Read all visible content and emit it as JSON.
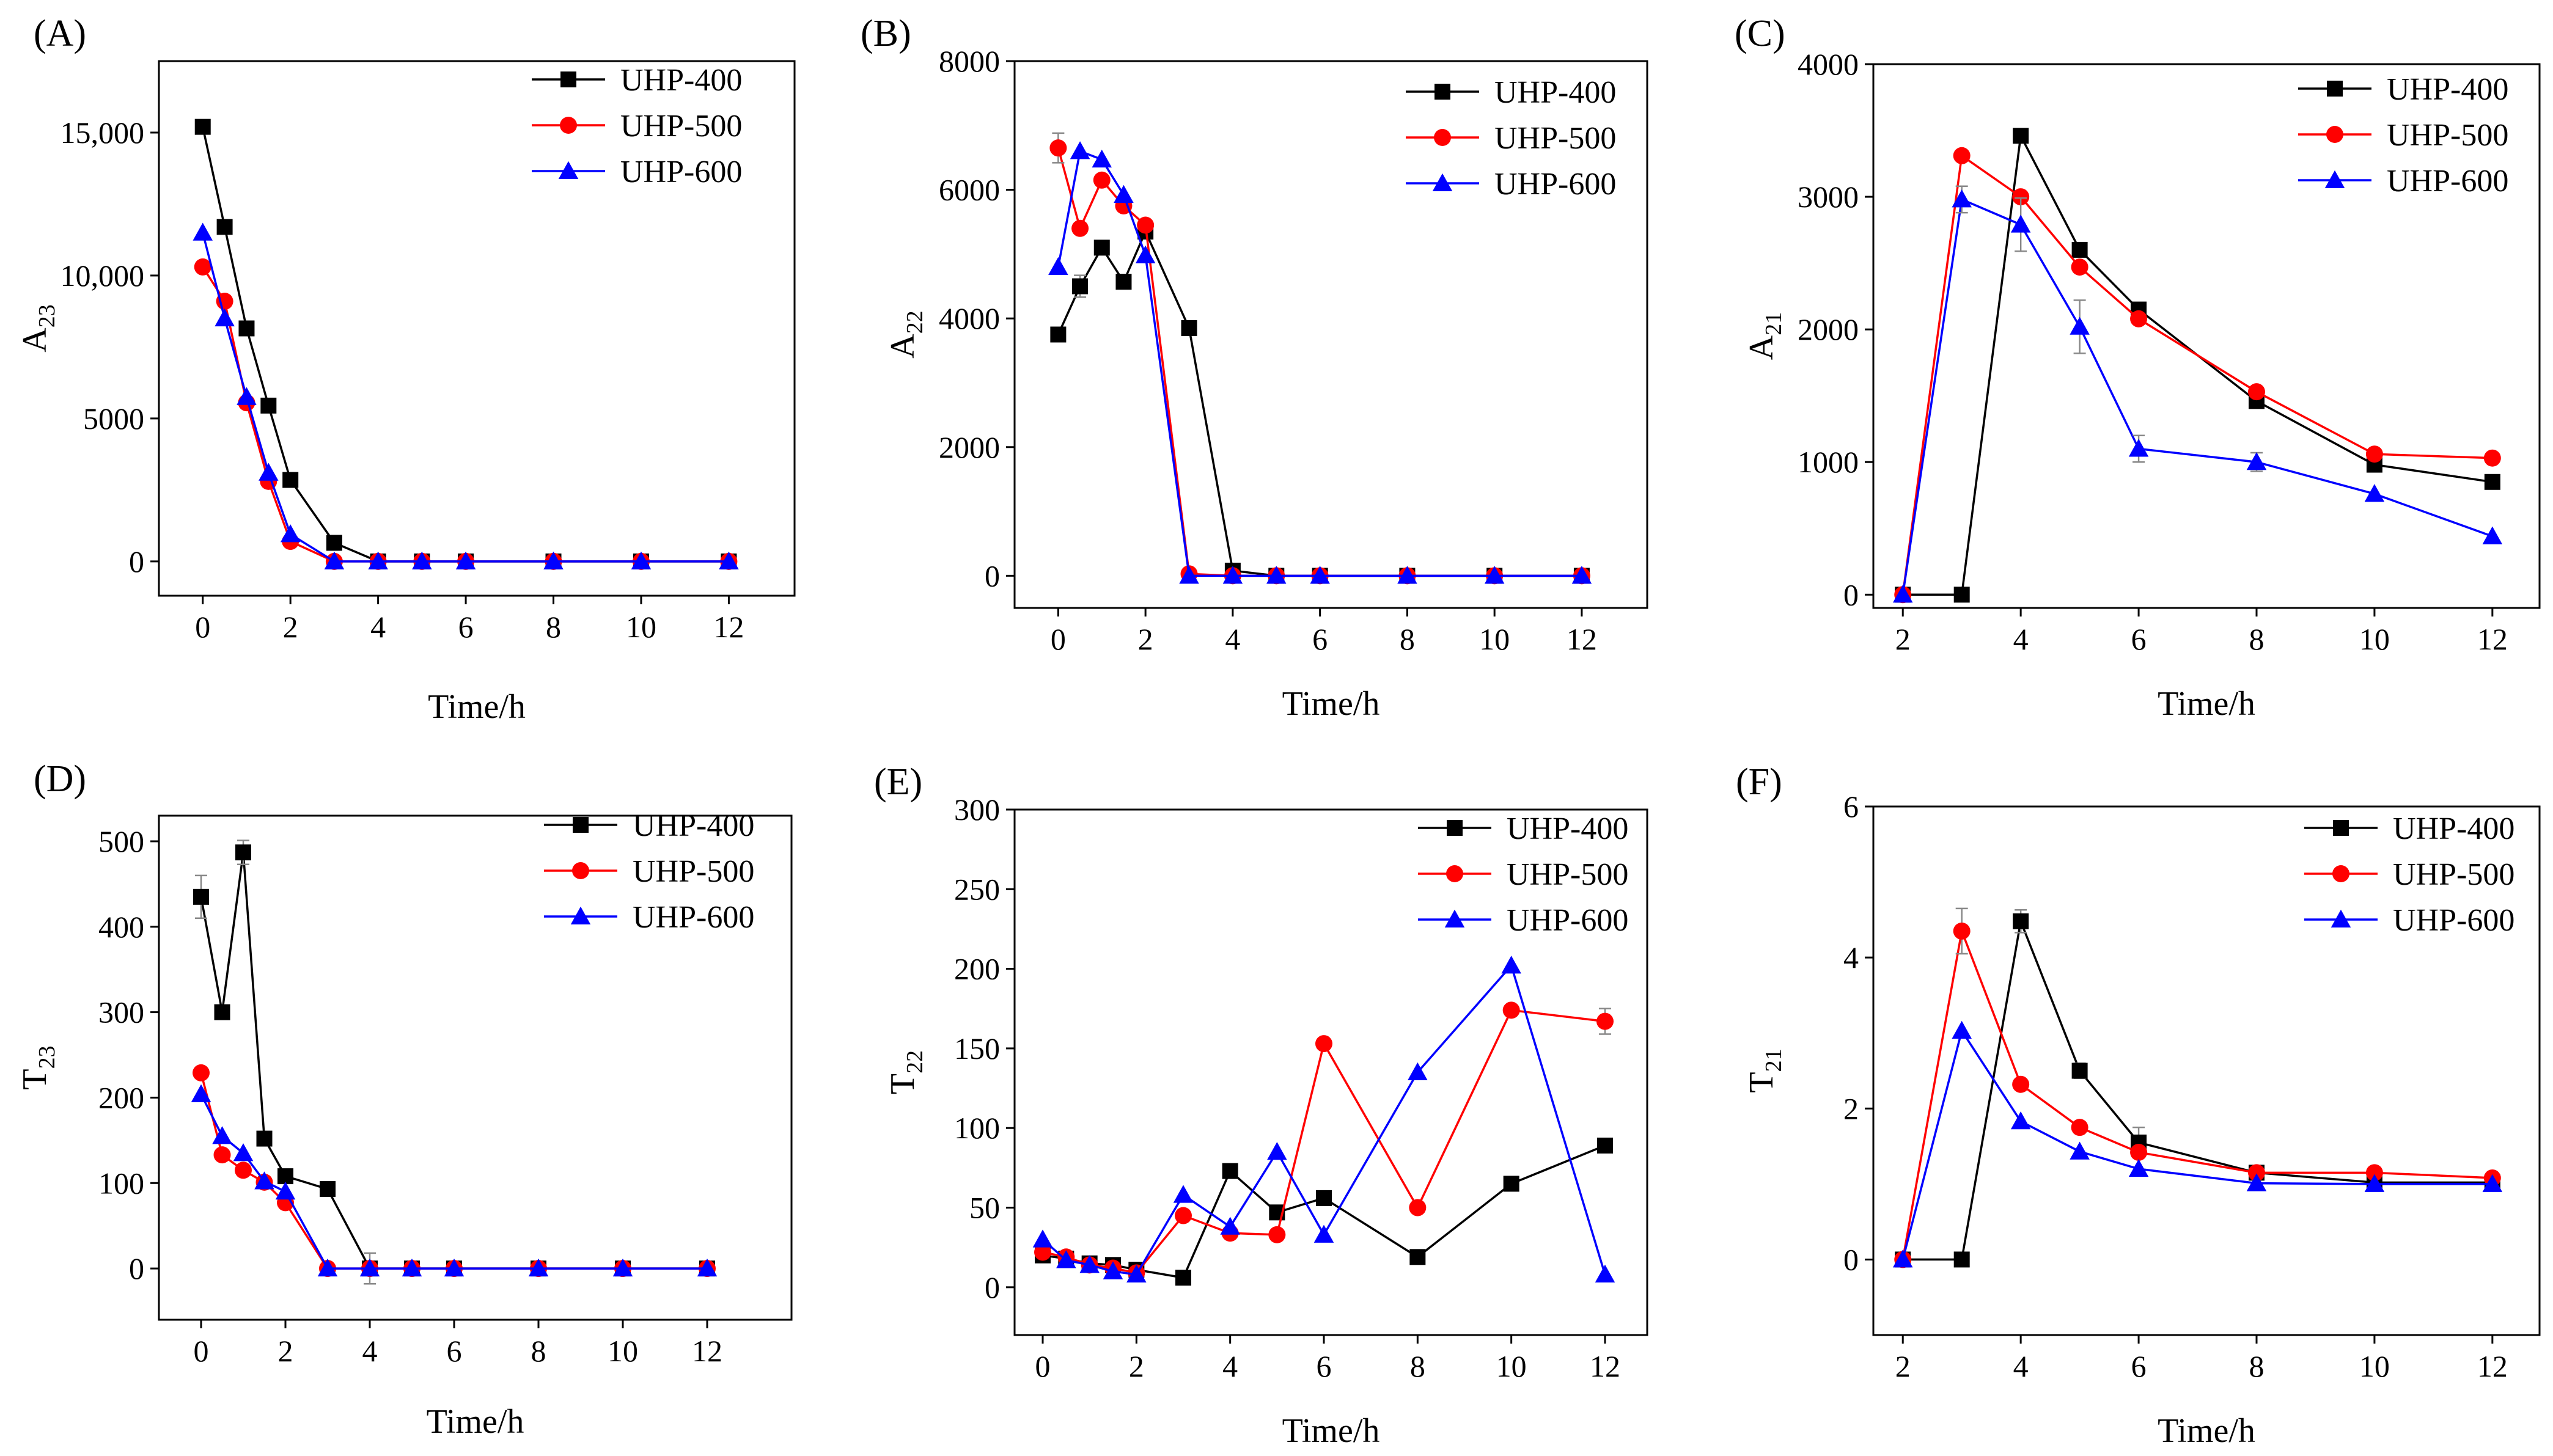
{
  "chart_data": [
    {
      "type": "line",
      "panel_label": "(A)",
      "xlabel": "Time/h",
      "ylabel": {
        "base": "A",
        "sub": "23"
      },
      "xlim": [
        -1,
        13.5
      ],
      "ylim": [
        -1200,
        17500
      ],
      "xticks": [
        0,
        2,
        4,
        6,
        8,
        10,
        12
      ],
      "yticks": [
        0,
        5000,
        10000,
        15000
      ],
      "ytick_labels": [
        "0",
        "5000",
        "10,000",
        "15,000"
      ],
      "series": [
        {
          "name": "UHP-400",
          "color": "#000000",
          "marker": "square",
          "x": [
            0,
            0.5,
            1,
            1.5,
            2,
            3,
            4,
            5,
            6,
            8,
            10,
            12
          ],
          "y": [
            15200,
            11700,
            8150,
            5450,
            2850,
            650,
            0,
            0,
            0,
            0,
            0,
            0
          ],
          "err": []
        },
        {
          "name": "UHP-500",
          "color": "#ff0000",
          "marker": "circle",
          "x": [
            0,
            0.5,
            1,
            1.5,
            2,
            3,
            4,
            5,
            6,
            8,
            10,
            12
          ],
          "y": [
            10300,
            9100,
            5550,
            2800,
            700,
            0,
            0,
            0,
            0,
            0,
            0,
            0
          ],
          "err": []
        },
        {
          "name": "UHP-600",
          "color": "#0000ff",
          "marker": "triangle",
          "x": [
            0,
            0.5,
            1,
            1.5,
            2,
            3,
            4,
            5,
            6,
            8,
            10,
            12
          ],
          "y": [
            11500,
            8500,
            5750,
            3100,
            950,
            0,
            0,
            0,
            0,
            0,
            0,
            0
          ],
          "err": []
        }
      ]
    },
    {
      "type": "line",
      "panel_label": "(B)",
      "xlabel": "Time/h",
      "ylabel": {
        "base": "A",
        "sub": "22"
      },
      "xlim": [
        -1,
        13.5
      ],
      "ylim": [
        -500,
        8000
      ],
      "xticks": [
        0,
        2,
        4,
        6,
        8,
        10,
        12
      ],
      "yticks": [
        0,
        2000,
        4000,
        6000,
        8000
      ],
      "ytick_labels": [
        "0",
        "2000",
        "4000",
        "6000",
        "8000"
      ],
      "series": [
        {
          "name": "UHP-400",
          "color": "#000000",
          "marker": "square",
          "x": [
            0,
            0.5,
            1,
            1.5,
            2,
            3,
            4,
            5,
            6,
            8,
            10,
            12
          ],
          "y": [
            3750,
            4500,
            5100,
            4570,
            5350,
            3850,
            80,
            0,
            0,
            0,
            0,
            0
          ],
          "err": [
            0,
            170,
            0,
            0,
            0,
            0,
            0,
            0,
            0,
            0,
            0,
            0
          ]
        },
        {
          "name": "UHP-500",
          "color": "#ff0000",
          "marker": "circle",
          "x": [
            0,
            0.5,
            1,
            1.5,
            2,
            3,
            4,
            5,
            6,
            8,
            10,
            12
          ],
          "y": [
            6650,
            5400,
            6150,
            5750,
            5450,
            30,
            0,
            0,
            0,
            0,
            0,
            0
          ],
          "err": [
            230,
            0,
            0,
            0,
            0,
            0,
            0,
            0,
            0,
            0,
            0,
            0
          ]
        },
        {
          "name": "UHP-600",
          "color": "#0000ff",
          "marker": "triangle",
          "x": [
            0,
            0.5,
            1,
            1.5,
            2,
            3,
            4,
            5,
            6,
            8,
            10,
            12
          ],
          "y": [
            4800,
            6600,
            6470,
            5920,
            4980,
            0,
            0,
            0,
            0,
            0,
            0,
            0
          ],
          "err": []
        }
      ]
    },
    {
      "type": "line",
      "panel_label": "(C)",
      "xlabel": "Time/h",
      "ylabel": {
        "base": "A",
        "sub": "21"
      },
      "xlim": [
        1.5,
        12.8
      ],
      "ylim": [
        -100,
        4000
      ],
      "xticks": [
        2,
        4,
        6,
        8,
        10,
        12
      ],
      "yticks": [
        0,
        1000,
        2000,
        3000,
        4000
      ],
      "ytick_labels": [
        "0",
        "1000",
        "2000",
        "3000",
        "4000"
      ],
      "series": [
        {
          "name": "UHP-400",
          "color": "#000000",
          "marker": "square",
          "x": [
            2,
            3,
            4,
            5,
            6,
            8,
            10,
            12
          ],
          "y": [
            0,
            0,
            3460,
            2600,
            2150,
            1460,
            980,
            850
          ],
          "err": [
            0,
            0,
            0,
            50,
            0,
            40,
            30,
            50
          ]
        },
        {
          "name": "UHP-500",
          "color": "#ff0000",
          "marker": "circle",
          "x": [
            2,
            3,
            4,
            5,
            6,
            8,
            10,
            12
          ],
          "y": [
            0,
            3310,
            3000,
            2470,
            2080,
            1530,
            1060,
            1030
          ],
          "err": []
        },
        {
          "name": "UHP-600",
          "color": "#0000ff",
          "marker": "triangle",
          "x": [
            2,
            3,
            4,
            5,
            6,
            8,
            10,
            12
          ],
          "y": [
            0,
            2980,
            2790,
            2020,
            1100,
            1000,
            760,
            440
          ],
          "err": [
            0,
            100,
            200,
            200,
            100,
            70,
            0,
            0
          ]
        }
      ]
    },
    {
      "type": "line",
      "panel_label": "(D)",
      "xlabel": "Time/h",
      "ylabel": {
        "base": "T",
        "sub": "23"
      },
      "xlim": [
        -1,
        14
      ],
      "ylim": [
        -60,
        530
      ],
      "xticks": [
        0,
        2,
        4,
        6,
        8,
        10,
        12
      ],
      "yticks": [
        0,
        100,
        200,
        300,
        400,
        500
      ],
      "ytick_labels": [
        "0",
        "100",
        "200",
        "300",
        "400",
        "500"
      ],
      "series": [
        {
          "name": "UHP-400",
          "color": "#000000",
          "marker": "square",
          "x": [
            0,
            0.5,
            1,
            1.5,
            2,
            3,
            4,
            5,
            6,
            8,
            10,
            12
          ],
          "y": [
            435,
            300,
            487,
            152,
            108,
            93,
            0,
            0,
            0,
            0,
            0,
            0
          ],
          "err": [
            25,
            0,
            14,
            0,
            0,
            0,
            18,
            0,
            0,
            0,
            0,
            0
          ]
        },
        {
          "name": "UHP-500",
          "color": "#ff0000",
          "marker": "circle",
          "x": [
            0,
            0.5,
            1,
            1.5,
            2,
            3,
            4,
            5,
            6,
            8,
            10,
            12
          ],
          "y": [
            229,
            133,
            115,
            101,
            77,
            0,
            0,
            0,
            0,
            0,
            0,
            0
          ],
          "err": []
        },
        {
          "name": "UHP-600",
          "color": "#0000ff",
          "marker": "triangle",
          "x": [
            0,
            0.5,
            1,
            1.5,
            2,
            3,
            4,
            5,
            6,
            8,
            10,
            12
          ],
          "y": [
            204,
            155,
            135,
            102,
            90,
            0,
            0,
            0,
            0,
            0,
            0,
            0
          ],
          "err": []
        }
      ]
    },
    {
      "type": "line",
      "panel_label": "(E)",
      "xlabel": "Time/h",
      "ylabel": {
        "base": "T",
        "sub": "22"
      },
      "xlim": [
        -0.6,
        12.9
      ],
      "ylim": [
        -30,
        300
      ],
      "xticks": [
        0,
        2,
        4,
        6,
        8,
        10,
        12
      ],
      "yticks": [
        0,
        50,
        100,
        150,
        200,
        250,
        300
      ],
      "ytick_labels": [
        "0",
        "50",
        "100",
        "150",
        "200",
        "250",
        "300"
      ],
      "series": [
        {
          "name": "UHP-400",
          "color": "#000000",
          "marker": "square",
          "x": [
            0,
            0.5,
            1,
            1.5,
            2,
            3,
            4,
            5,
            6,
            8,
            10,
            12
          ],
          "y": [
            20,
            18,
            15,
            14,
            11,
            6,
            73,
            47,
            56,
            19,
            65,
            89
          ],
          "err": []
        },
        {
          "name": "UHP-500",
          "color": "#ff0000",
          "marker": "circle",
          "x": [
            0,
            0.5,
            1,
            1.5,
            2,
            3,
            4,
            5,
            6,
            8,
            10,
            12
          ],
          "y": [
            22,
            19,
            14,
            12,
            9,
            45,
            34,
            33,
            153,
            50,
            174,
            167
          ],
          "err": [
            0,
            0,
            0,
            0,
            0,
            0,
            0,
            0,
            0,
            0,
            0,
            8
          ]
        },
        {
          "name": "UHP-600",
          "color": "#0000ff",
          "marker": "triangle",
          "x": [
            0,
            0.5,
            1,
            1.5,
            2,
            3,
            4,
            5,
            6,
            8,
            10,
            12
          ],
          "y": [
            30,
            17,
            14,
            10,
            8,
            58,
            38,
            85,
            33,
            135,
            202,
            8
          ],
          "err": []
        }
      ]
    },
    {
      "type": "line",
      "panel_label": "(F)",
      "xlabel": "Time/h",
      "ylabel": {
        "base": "T",
        "sub": "21"
      },
      "xlim": [
        1.5,
        12.8
      ],
      "ylim": [
        -1,
        6
      ],
      "xticks": [
        2,
        4,
        6,
        8,
        10,
        12
      ],
      "yticks": [
        0,
        2,
        4,
        6
      ],
      "ytick_labels": [
        "0",
        "2",
        "4",
        "6"
      ],
      "series": [
        {
          "name": "UHP-400",
          "color": "#000000",
          "marker": "square",
          "x": [
            2,
            3,
            4,
            5,
            6,
            8,
            10,
            12
          ],
          "y": [
            0,
            0,
            4.48,
            2.5,
            1.55,
            1.15,
            1.02,
            1.02
          ],
          "err": [
            0,
            0,
            0.15,
            0.1,
            0.2,
            0,
            0,
            0
          ]
        },
        {
          "name": "UHP-500",
          "color": "#ff0000",
          "marker": "circle",
          "x": [
            2,
            3,
            4,
            5,
            6,
            8,
            10,
            12
          ],
          "y": [
            0,
            4.35,
            2.32,
            1.75,
            1.42,
            1.15,
            1.15,
            1.08
          ],
          "err": [
            0,
            0.3,
            0,
            0,
            0,
            0,
            0,
            0
          ]
        },
        {
          "name": "UHP-600",
          "color": "#0000ff",
          "marker": "triangle",
          "x": [
            2,
            3,
            4,
            5,
            6,
            8,
            10,
            12
          ],
          "y": [
            0,
            3.03,
            1.83,
            1.43,
            1.2,
            1.01,
            1.0,
            1.0
          ],
          "err": []
        }
      ]
    }
  ]
}
